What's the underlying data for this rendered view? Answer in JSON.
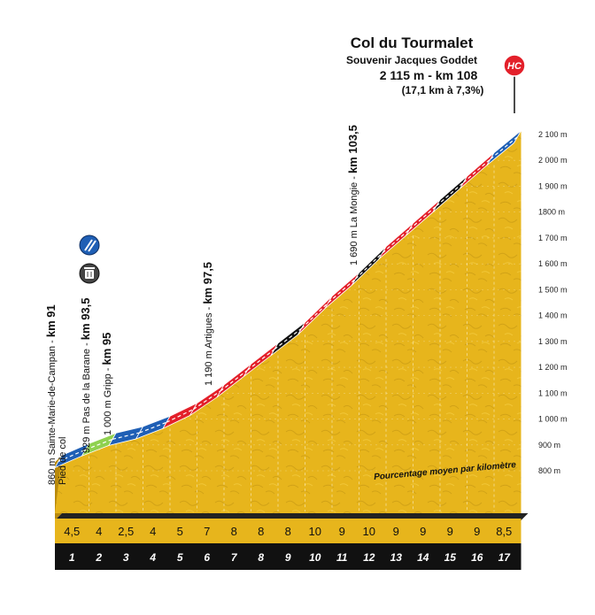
{
  "summit": {
    "name": "Col du Tourmalet",
    "souvenir": "Souvenir Jacques Goddet",
    "altitude_km": "2 115 m - km 108",
    "climb_summary": "(17,1 km à 7,3%)",
    "category": "HC"
  },
  "note": "Pourcentage moyen par kilomètre",
  "landmarks": [
    {
      "text": "860 m Sainte-Marie-de-Campan - ",
      "km": "km 91",
      "sub": "Pied de col",
      "icon": "sprint-icon"
    },
    {
      "text": "929 m Pas de la Barane - ",
      "km": "km 93,5"
    },
    {
      "text": "1 000 m Gripp - ",
      "km": "km 95"
    },
    {
      "text": "1 190 m Artigues - ",
      "km": "km 97,5"
    },
    {
      "text": "1 690 m La Mongie - ",
      "km": "km 103,5"
    }
  ],
  "icons": {
    "sprint": "intermediate-sprint-icon",
    "feed": "feed-zone-icon"
  },
  "colors": {
    "yellow": "#e7b51c",
    "yellow_dark": "#b98a0c",
    "blue": "#1f5fb5",
    "green": "#8fd14f",
    "red": "#e3202a",
    "black": "#111111",
    "summit_badge": "#e3202a"
  },
  "chart_data": {
    "type": "area",
    "title": "Col du Tourmalet",
    "xlabel": "",
    "ylabel": "",
    "ylim": [
      700,
      2150
    ],
    "y_ticks": [
      "800 m",
      "900 m",
      "1 000 m",
      "1 100 m",
      "1 200 m",
      "1 300 m",
      "1 400 m",
      "1 500 m",
      "1 600 m",
      "1 700 m",
      "1800 m",
      "1 900 m",
      "2 000 m",
      "2 100 m"
    ],
    "km_labels": [
      "1",
      "2",
      "3",
      "4",
      "5",
      "6",
      "7",
      "8",
      "9",
      "10",
      "11",
      "12",
      "13",
      "14",
      "15",
      "16",
      "17"
    ],
    "grades": [
      "4,5",
      "4",
      "2,5",
      "4",
      "5",
      "7",
      "8",
      "8",
      "8",
      "10",
      "9",
      "10",
      "9",
      "9",
      "9",
      "9",
      "8,5"
    ],
    "grade_values": [
      4.5,
      4,
      2.5,
      4,
      5,
      7,
      8,
      8,
      8,
      10,
      9,
      10,
      9,
      9,
      9,
      9,
      8.5
    ],
    "grade_colors": [
      "blue",
      "green",
      "blue",
      "blue",
      "red",
      "red",
      "red",
      "red",
      "black",
      "red",
      "red",
      "black",
      "red",
      "red",
      "black",
      "red",
      "blue"
    ],
    "start_altitude": 860,
    "end_altitude": 2115,
    "total_distance_km": 17.1
  }
}
